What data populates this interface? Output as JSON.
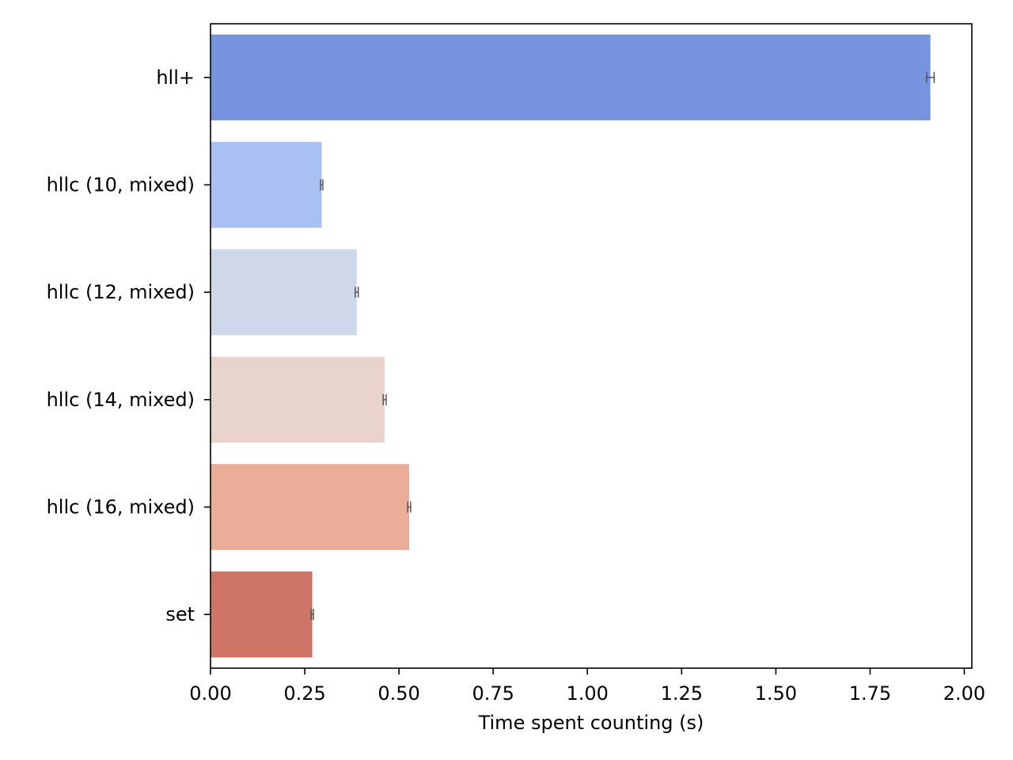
{
  "chart_data": {
    "type": "bar",
    "orientation": "horizontal",
    "title": "",
    "xlabel": "Time spent counting (s)",
    "ylabel": "",
    "xlim": [
      0,
      2.02
    ],
    "xticks": [
      "0.00",
      "0.25",
      "0.50",
      "0.75",
      "1.00",
      "1.25",
      "1.50",
      "1.75",
      "2.00"
    ],
    "xtick_values": [
      0,
      0.25,
      0.5,
      0.75,
      1.0,
      1.25,
      1.5,
      1.75,
      2.0
    ],
    "grid": false,
    "legend": "none",
    "categories": [
      "hll+",
      "hllc (10, mixed)",
      "hllc (12, mixed)",
      "hllc (14, mixed)",
      "hllc (16, mixed)",
      "set"
    ],
    "values": [
      1.91,
      0.295,
      0.388,
      0.462,
      0.527,
      0.27
    ],
    "error": [
      0.01,
      0.003,
      0.004,
      0.004,
      0.004,
      0.003
    ],
    "colors": [
      "#7795DF",
      "#A8C0F3",
      "#CDD9EB",
      "#E8D4CA",
      "#EAAD97",
      "#CE7566"
    ]
  }
}
